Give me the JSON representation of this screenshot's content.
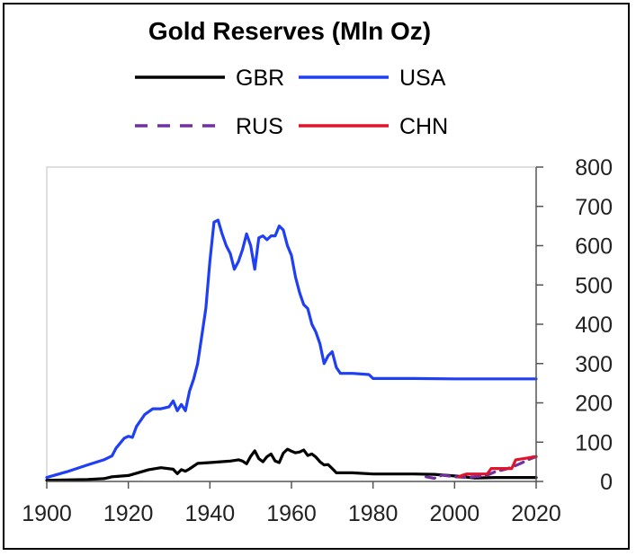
{
  "chart_data": {
    "type": "line",
    "title": "Gold Reserves (Mln Oz)",
    "xlabel": "",
    "ylabel": "",
    "xlim": [
      1900,
      2020
    ],
    "ylim": [
      0,
      800
    ],
    "x_ticks": [
      1900,
      1920,
      1940,
      1960,
      1980,
      2000,
      2020
    ],
    "y_ticks": [
      0,
      100,
      200,
      300,
      400,
      500,
      600,
      700,
      800
    ],
    "y_axis_side": "right",
    "grid": false,
    "legend_position": "top",
    "series": [
      {
        "name": "GBR",
        "color": "#000000",
        "style": "solid",
        "points": [
          [
            1900,
            3
          ],
          [
            1910,
            5
          ],
          [
            1914,
            7
          ],
          [
            1916,
            12
          ],
          [
            1920,
            15
          ],
          [
            1925,
            30
          ],
          [
            1928,
            35
          ],
          [
            1931,
            31
          ],
          [
            1932,
            20
          ],
          [
            1933,
            30
          ],
          [
            1934,
            26
          ],
          [
            1935,
            32
          ],
          [
            1937,
            46
          ],
          [
            1940,
            48
          ],
          [
            1945,
            52
          ],
          [
            1947,
            55
          ],
          [
            1948,
            52
          ],
          [
            1949,
            45
          ],
          [
            1950,
            64
          ],
          [
            1951,
            78
          ],
          [
            1952,
            58
          ],
          [
            1953,
            50
          ],
          [
            1954,
            63
          ],
          [
            1955,
            70
          ],
          [
            1956,
            52
          ],
          [
            1957,
            48
          ],
          [
            1958,
            72
          ],
          [
            1959,
            82
          ],
          [
            1960,
            77
          ],
          [
            1961,
            73
          ],
          [
            1962,
            75
          ],
          [
            1963,
            80
          ],
          [
            1964,
            66
          ],
          [
            1965,
            70
          ],
          [
            1966,
            62
          ],
          [
            1967,
            50
          ],
          [
            1968,
            42
          ],
          [
            1969,
            43
          ],
          [
            1970,
            33
          ],
          [
            1971,
            22
          ],
          [
            1975,
            22
          ],
          [
            1980,
            19
          ],
          [
            1990,
            19
          ],
          [
            1995,
            18
          ],
          [
            2000,
            14
          ],
          [
            2005,
            9
          ],
          [
            2010,
            10
          ],
          [
            2020,
            10
          ]
        ]
      },
      {
        "name": "USA",
        "color": "#1f3ff5",
        "style": "solid",
        "points": [
          [
            1900,
            10
          ],
          [
            1905,
            25
          ],
          [
            1910,
            42
          ],
          [
            1914,
            55
          ],
          [
            1916,
            65
          ],
          [
            1917,
            85
          ],
          [
            1919,
            110
          ],
          [
            1920,
            115
          ],
          [
            1921,
            112
          ],
          [
            1922,
            140
          ],
          [
            1924,
            170
          ],
          [
            1926,
            185
          ],
          [
            1928,
            185
          ],
          [
            1930,
            190
          ],
          [
            1931,
            205
          ],
          [
            1932,
            180
          ],
          [
            1933,
            196
          ],
          [
            1934,
            180
          ],
          [
            1935,
            230
          ],
          [
            1936,
            260
          ],
          [
            1937,
            300
          ],
          [
            1938,
            370
          ],
          [
            1939,
            440
          ],
          [
            1940,
            560
          ],
          [
            1941,
            660
          ],
          [
            1942,
            665
          ],
          [
            1943,
            630
          ],
          [
            1944,
            600
          ],
          [
            1945,
            580
          ],
          [
            1946,
            540
          ],
          [
            1947,
            560
          ],
          [
            1948,
            590
          ],
          [
            1949,
            630
          ],
          [
            1950,
            600
          ],
          [
            1951,
            540
          ],
          [
            1952,
            620
          ],
          [
            1953,
            625
          ],
          [
            1954,
            615
          ],
          [
            1955,
            625
          ],
          [
            1956,
            625
          ],
          [
            1957,
            650
          ],
          [
            1958,
            640
          ],
          [
            1959,
            600
          ],
          [
            1960,
            575
          ],
          [
            1961,
            520
          ],
          [
            1962,
            480
          ],
          [
            1963,
            450
          ],
          [
            1964,
            440
          ],
          [
            1965,
            400
          ],
          [
            1966,
            380
          ],
          [
            1967,
            350
          ],
          [
            1968,
            300
          ],
          [
            1969,
            320
          ],
          [
            1970,
            330
          ],
          [
            1971,
            290
          ],
          [
            1972,
            275
          ],
          [
            1975,
            275
          ],
          [
            1979,
            272
          ],
          [
            1980,
            262
          ],
          [
            1990,
            262
          ],
          [
            2000,
            261
          ],
          [
            2010,
            261
          ],
          [
            2020,
            261
          ]
        ]
      },
      {
        "name": "RUS",
        "color": "#7030a0",
        "style": "dashed",
        "points": [
          [
            1993,
            12
          ],
          [
            1995,
            8
          ],
          [
            1997,
            16
          ],
          [
            2000,
            12
          ],
          [
            2003,
            10
          ],
          [
            2006,
            13
          ],
          [
            2008,
            16
          ],
          [
            2010,
            25
          ],
          [
            2012,
            30
          ],
          [
            2014,
            36
          ],
          [
            2016,
            45
          ],
          [
            2018,
            55
          ],
          [
            2020,
            63
          ]
        ]
      },
      {
        "name": "CHN",
        "color": "#e0142a",
        "style": "solid",
        "points": [
          [
            2001,
            12
          ],
          [
            2002,
            16
          ],
          [
            2003,
            19
          ],
          [
            2008,
            19
          ],
          [
            2009,
            33
          ],
          [
            2014,
            33
          ],
          [
            2015,
            55
          ],
          [
            2018,
            60
          ],
          [
            2019,
            62
          ],
          [
            2020,
            63
          ]
        ]
      }
    ]
  }
}
